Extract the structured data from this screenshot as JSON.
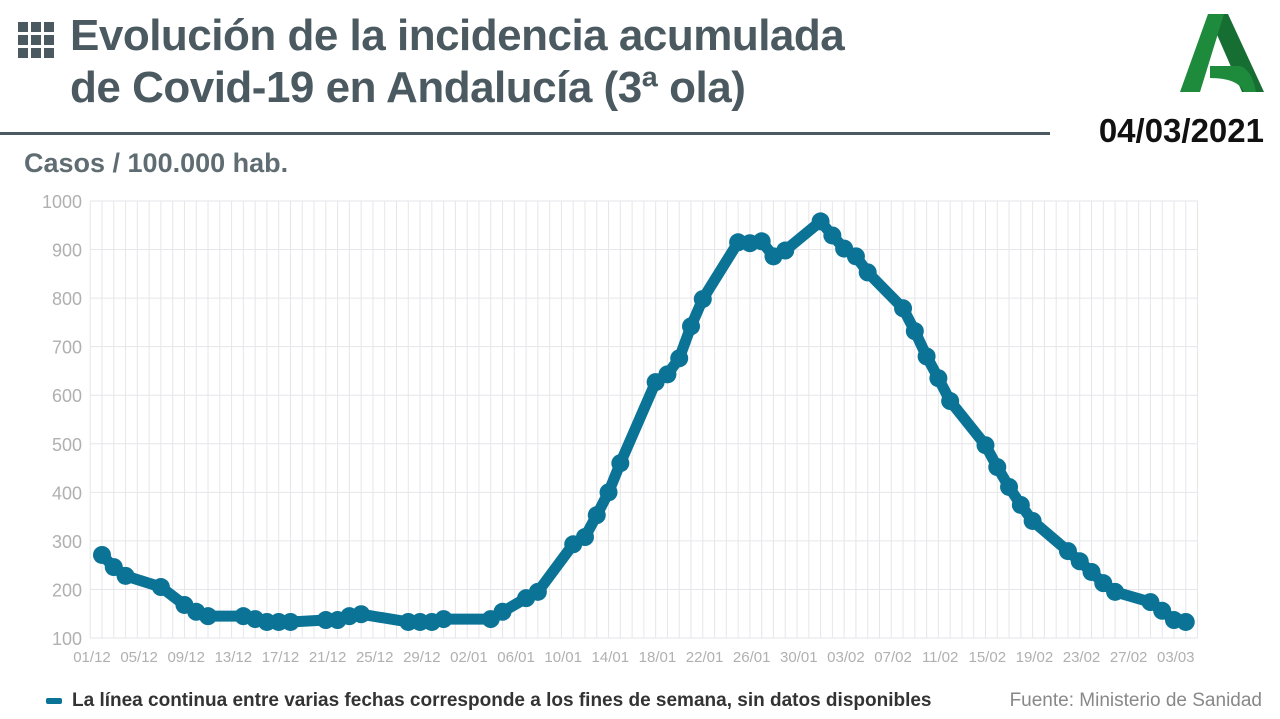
{
  "header": {
    "title_line1": "Evolución de la incidencia acumulada",
    "title_line2": "de Covid-19 en Andalucía (3ª ola)",
    "date": "04/03/2021",
    "logo_text": "Junta de Andalucía",
    "menu_icon": "grid-icon"
  },
  "colors": {
    "line": "#0a7396",
    "title": "#4b5960",
    "logo": "#1e8a3c",
    "grid": "#e6e6ea"
  },
  "chart_data": {
    "type": "line",
    "title": "Evolución de la incidencia acumulada de Covid-19 en Andalucía (3ª ola)",
    "ylabel": "Casos / 100.000 hab.",
    "xlabel": "",
    "ylim": [
      100,
      1000
    ],
    "yticks": [
      100,
      200,
      300,
      400,
      500,
      600,
      700,
      800,
      900,
      1000
    ],
    "xticks": [
      "01/12",
      "05/12",
      "09/12",
      "13/12",
      "17/12",
      "21/12",
      "25/12",
      "29/12",
      "02/01",
      "06/01",
      "10/01",
      "14/01",
      "18/01",
      "22/01",
      "26/01",
      "30/01",
      "03/02",
      "07/02",
      "11/02",
      "15/02",
      "19/02",
      "23/02",
      "27/02",
      "03/03"
    ],
    "grid": true,
    "series": [
      {
        "points": [
          [
            "01/12",
            271
          ],
          [
            "02/12",
            246
          ],
          [
            "03/12",
            228
          ],
          [
            "06/12",
            205
          ],
          [
            "08/12",
            168
          ],
          [
            "09/12",
            154
          ],
          [
            "10/12",
            145
          ],
          [
            "13/12",
            145
          ],
          [
            "14/12",
            139
          ],
          [
            "15/12",
            133
          ],
          [
            "16/12",
            133
          ],
          [
            "17/12",
            133
          ],
          [
            "20/12",
            137
          ],
          [
            "21/12",
            137
          ],
          [
            "22/12",
            145
          ],
          [
            "23/12",
            149
          ],
          [
            "27/12",
            133
          ],
          [
            "28/12",
            133
          ],
          [
            "29/12",
            133
          ],
          [
            "30/12",
            139
          ],
          [
            "03/01",
            139
          ],
          [
            "04/01",
            154
          ],
          [
            "06/01",
            182
          ],
          [
            "07/01",
            195
          ],
          [
            "10/01",
            293
          ],
          [
            "11/01",
            308
          ],
          [
            "12/01",
            353
          ],
          [
            "13/01",
            400
          ],
          [
            "14/01",
            460
          ],
          [
            "17/01",
            627
          ],
          [
            "18/01",
            643
          ],
          [
            "19/01",
            676
          ],
          [
            "20/01",
            742
          ],
          [
            "21/01",
            798
          ],
          [
            "24/01",
            915
          ],
          [
            "25/01",
            913
          ],
          [
            "26/01",
            917
          ],
          [
            "27/01",
            886
          ],
          [
            "28/01",
            898
          ],
          [
            "31/01",
            958
          ],
          [
            "01/02",
            929
          ],
          [
            "02/02",
            902
          ],
          [
            "03/02",
            886
          ],
          [
            "04/02",
            853
          ],
          [
            "07/02",
            779
          ],
          [
            "08/02",
            732
          ],
          [
            "09/02",
            680
          ],
          [
            "10/02",
            635
          ],
          [
            "11/02",
            588
          ],
          [
            "14/02",
            497
          ],
          [
            "15/02",
            452
          ],
          [
            "16/02",
            411
          ],
          [
            "17/02",
            374
          ],
          [
            "18/02",
            341
          ],
          [
            "21/02",
            279
          ],
          [
            "22/02",
            258
          ],
          [
            "23/02",
            236
          ],
          [
            "24/02",
            213
          ],
          [
            "25/02",
            195
          ],
          [
            "28/02",
            174
          ],
          [
            "01/03",
            156
          ],
          [
            "02/03",
            137
          ],
          [
            "03/03",
            133
          ]
        ]
      }
    ]
  },
  "footer": {
    "note": "La línea continua entre varias fechas corresponde a los fines de semana, sin datos disponibles",
    "source": "Fuente: Ministerio de Sanidad"
  }
}
